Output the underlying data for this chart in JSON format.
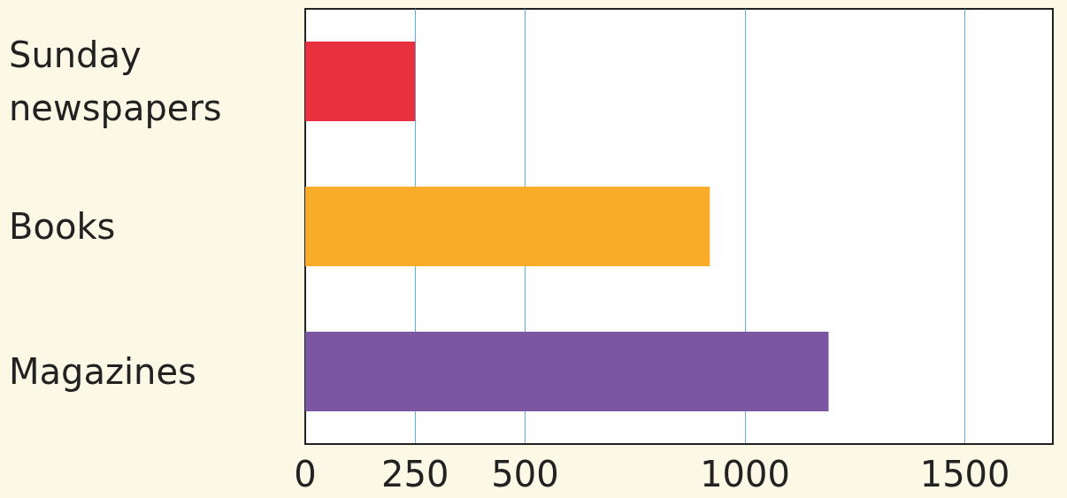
{
  "chart_data": {
    "type": "bar",
    "orientation": "horizontal",
    "categories": [
      "Sunday newspapers",
      "Books",
      "Magazines"
    ],
    "values": [
      250,
      920,
      1190
    ],
    "colors": [
      "#e8303f",
      "#f8ac27",
      "#7a57a0"
    ],
    "xlim": [
      0,
      1700
    ],
    "xticks": [
      0,
      250,
      500,
      1000,
      1500
    ],
    "grid": "x"
  }
}
